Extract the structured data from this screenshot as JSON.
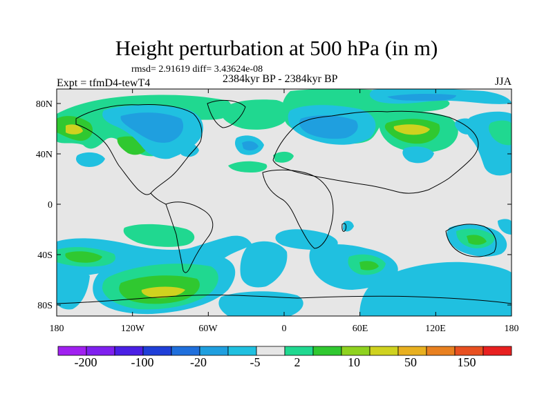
{
  "title": "Height perturbation at 500 hPa (in m)",
  "stats": "rmsd= 2.91619 diff= 3.43624e-08",
  "period": "2384kyr BP - 2384kyr BP",
  "experiment": "Expt = tfmD4-tewT4",
  "season": "JJA",
  "axes": {
    "lat_labels": [
      "80N",
      "40N",
      "0",
      "40S",
      "80S"
    ],
    "lon_labels": [
      "180",
      "120W",
      "60W",
      "0",
      "60E",
      "120E",
      "180"
    ]
  },
  "colorbar": {
    "colors": [
      "#a020f0",
      "#7f20ef",
      "#4a1fe5",
      "#1f3fd8",
      "#1f6fdc",
      "#1f9fdf",
      "#20c0e0",
      "#e6e6e6",
      "#20d890",
      "#30c830",
      "#8fd21f",
      "#cfd21f",
      "#e8b020",
      "#e88020",
      "#e85020",
      "#e82020"
    ],
    "labels": [
      "-200",
      "-100",
      "-20",
      "-5",
      "2",
      "10",
      "50",
      "150"
    ]
  },
  "field_colors": {
    "background": "#e6e6e6",
    "cyan": "#20c0e0",
    "blue": "#1f9fdf",
    "green": "#20d890",
    "lime": "#30c830",
    "yellow": "#cfd21f"
  }
}
